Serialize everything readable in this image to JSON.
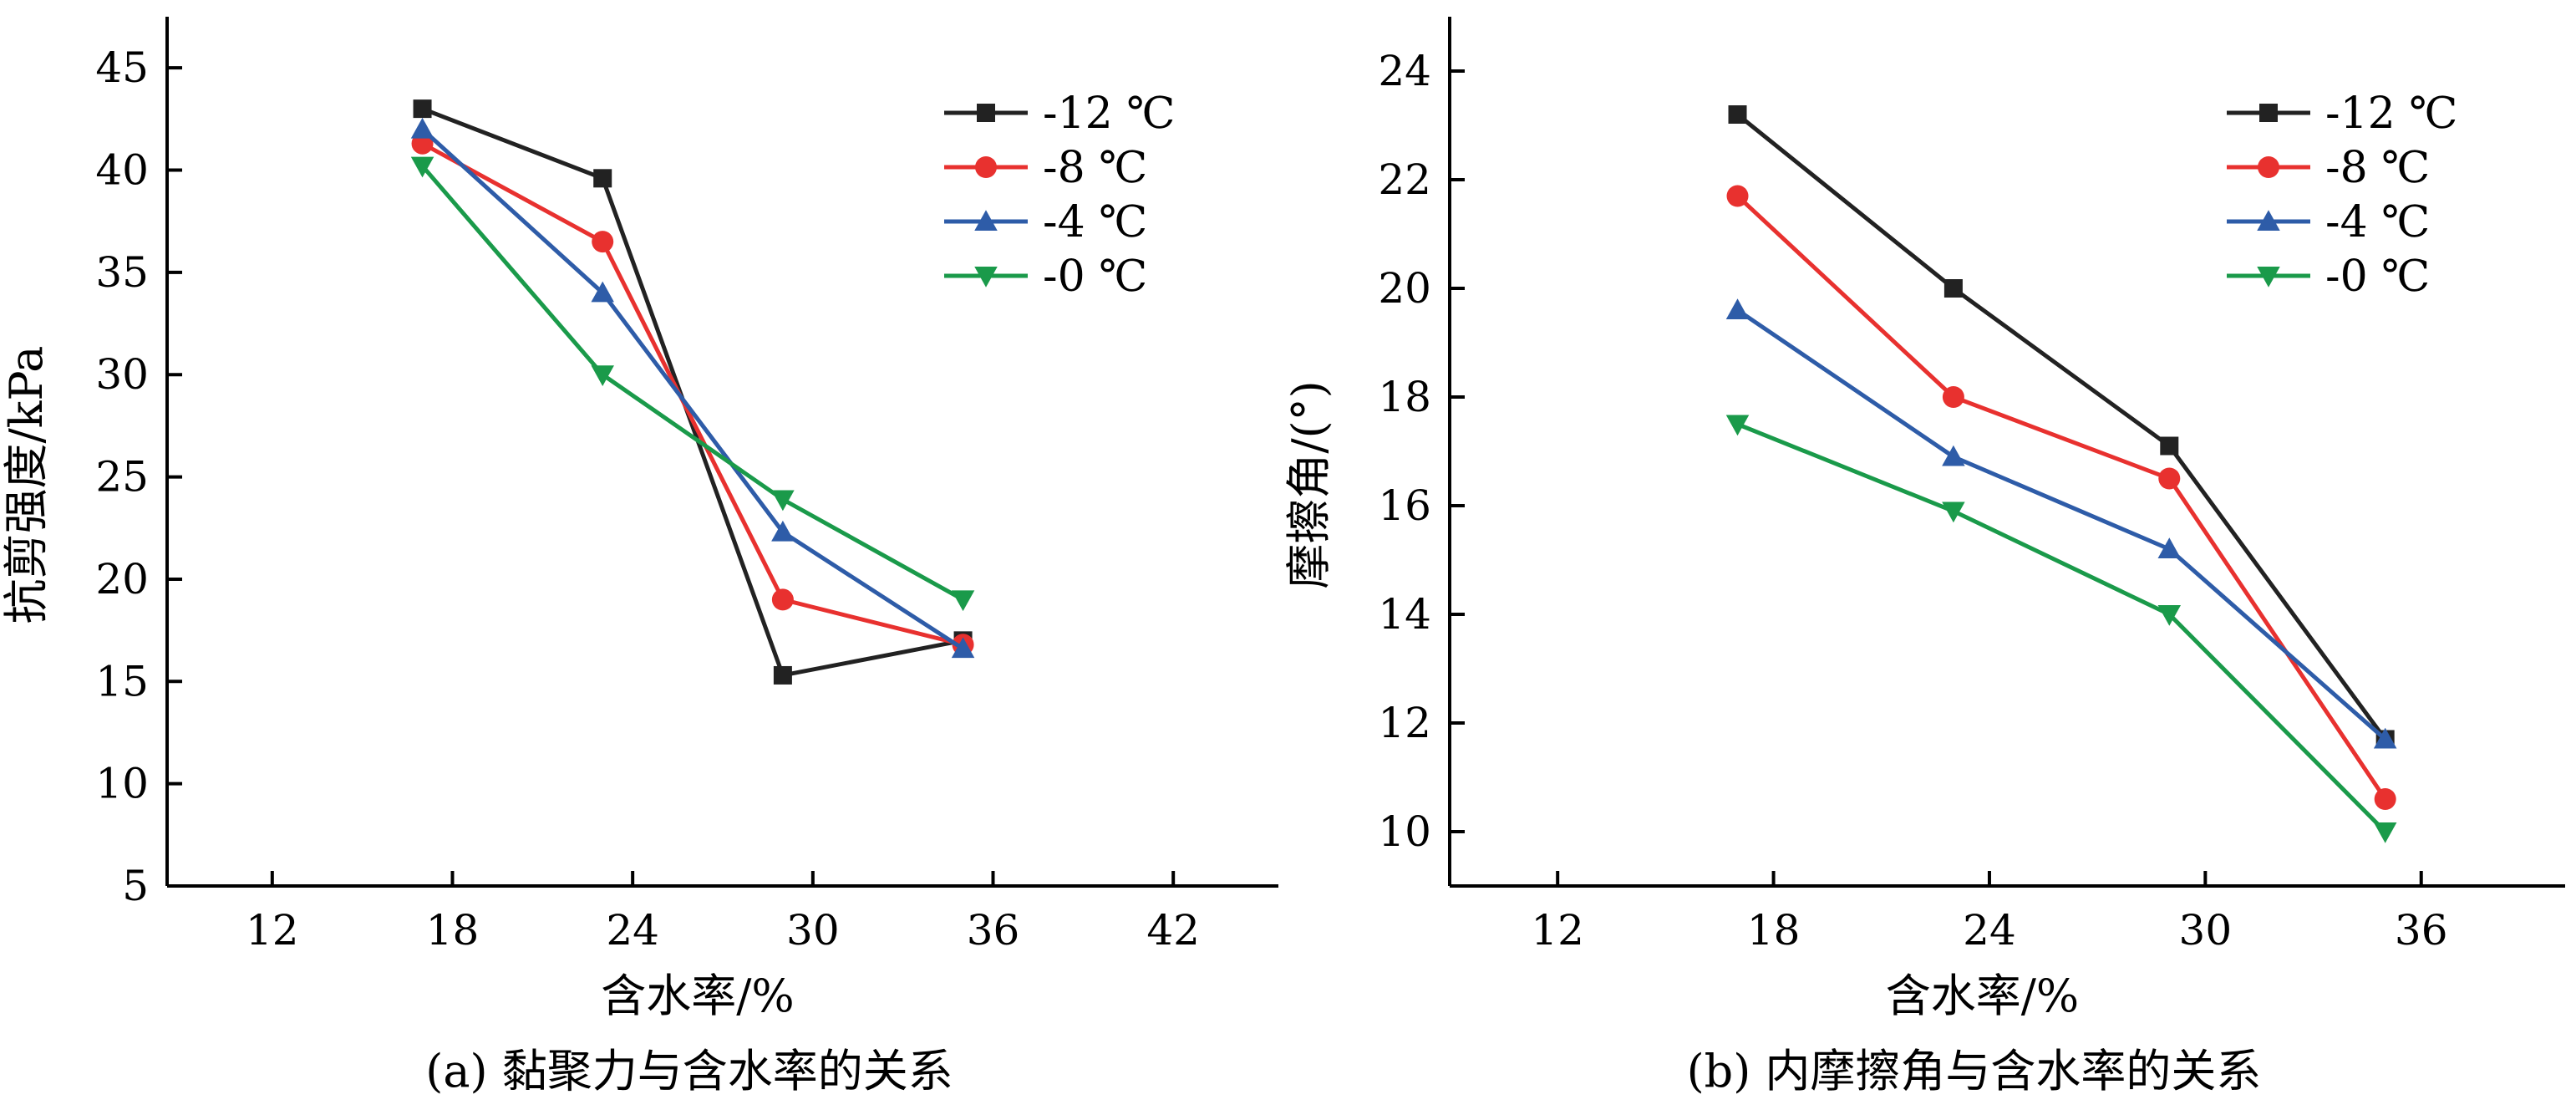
{
  "colors": {
    "black": "#222222",
    "red": "#e8312f",
    "blue": "#2e5ca8",
    "green": "#1a9a4a"
  },
  "chart_data": [
    {
      "type": "line",
      "caption": "(a) 黏聚力与含水率的关系",
      "xlabel": "含水率/%",
      "ylabel": "抗剪强度/kPa",
      "xlim": [
        8.5,
        45.5
      ],
      "ylim": [
        5,
        47.5
      ],
      "xticks": [
        12,
        18,
        24,
        30,
        36,
        42
      ],
      "yticks": [
        5,
        10,
        15,
        20,
        25,
        30,
        35,
        40,
        45
      ],
      "legend_position": "top-right",
      "series": [
        {
          "name": "-12 ℃",
          "marker": "square",
          "color": "#222222",
          "x": [
            17,
            23,
            29,
            35
          ],
          "y": [
            43.0,
            39.6,
            15.3,
            17.0
          ]
        },
        {
          "name": "-8 ℃",
          "marker": "circle",
          "color": "#e8312f",
          "x": [
            17,
            23,
            29,
            35
          ],
          "y": [
            41.3,
            36.5,
            19.0,
            16.8
          ]
        },
        {
          "name": "-4 ℃",
          "marker": "triangle-up",
          "color": "#2e5ca8",
          "x": [
            17,
            23,
            29,
            35
          ],
          "y": [
            42.0,
            34.0,
            22.3,
            16.6
          ]
        },
        {
          "name": "-0 ℃",
          "marker": "triangle-down",
          "color": "#1a9a4a",
          "x": [
            17,
            23,
            29,
            35
          ],
          "y": [
            40.2,
            30.0,
            23.9,
            19.0
          ]
        }
      ]
    },
    {
      "type": "line",
      "caption": "(b) 内摩擦角与含水率的关系",
      "xlabel": "含水率/%",
      "ylabel": "摩擦角/(°)",
      "xlim": [
        9,
        40
      ],
      "ylim": [
        9,
        25
      ],
      "xticks": [
        12,
        18,
        24,
        30,
        36
      ],
      "yticks": [
        10,
        12,
        14,
        16,
        18,
        20,
        22,
        24
      ],
      "legend_position": "top-right",
      "series": [
        {
          "name": "-12 ℃",
          "marker": "square",
          "color": "#222222",
          "x": [
            17,
            23,
            29,
            35
          ],
          "y": [
            23.2,
            20.0,
            17.1,
            11.7
          ]
        },
        {
          "name": "-8 ℃",
          "marker": "circle",
          "color": "#e8312f",
          "x": [
            17,
            23,
            29,
            35
          ],
          "y": [
            21.7,
            18.0,
            16.5,
            10.6
          ]
        },
        {
          "name": "-4 ℃",
          "marker": "triangle-up",
          "color": "#2e5ca8",
          "x": [
            17,
            23,
            29,
            35
          ],
          "y": [
            19.6,
            16.9,
            15.2,
            11.7
          ]
        },
        {
          "name": "-0 ℃",
          "marker": "triangle-down",
          "color": "#1a9a4a",
          "x": [
            17,
            23,
            29,
            35
          ],
          "y": [
            17.5,
            15.9,
            14.0,
            10.0
          ]
        }
      ]
    }
  ]
}
